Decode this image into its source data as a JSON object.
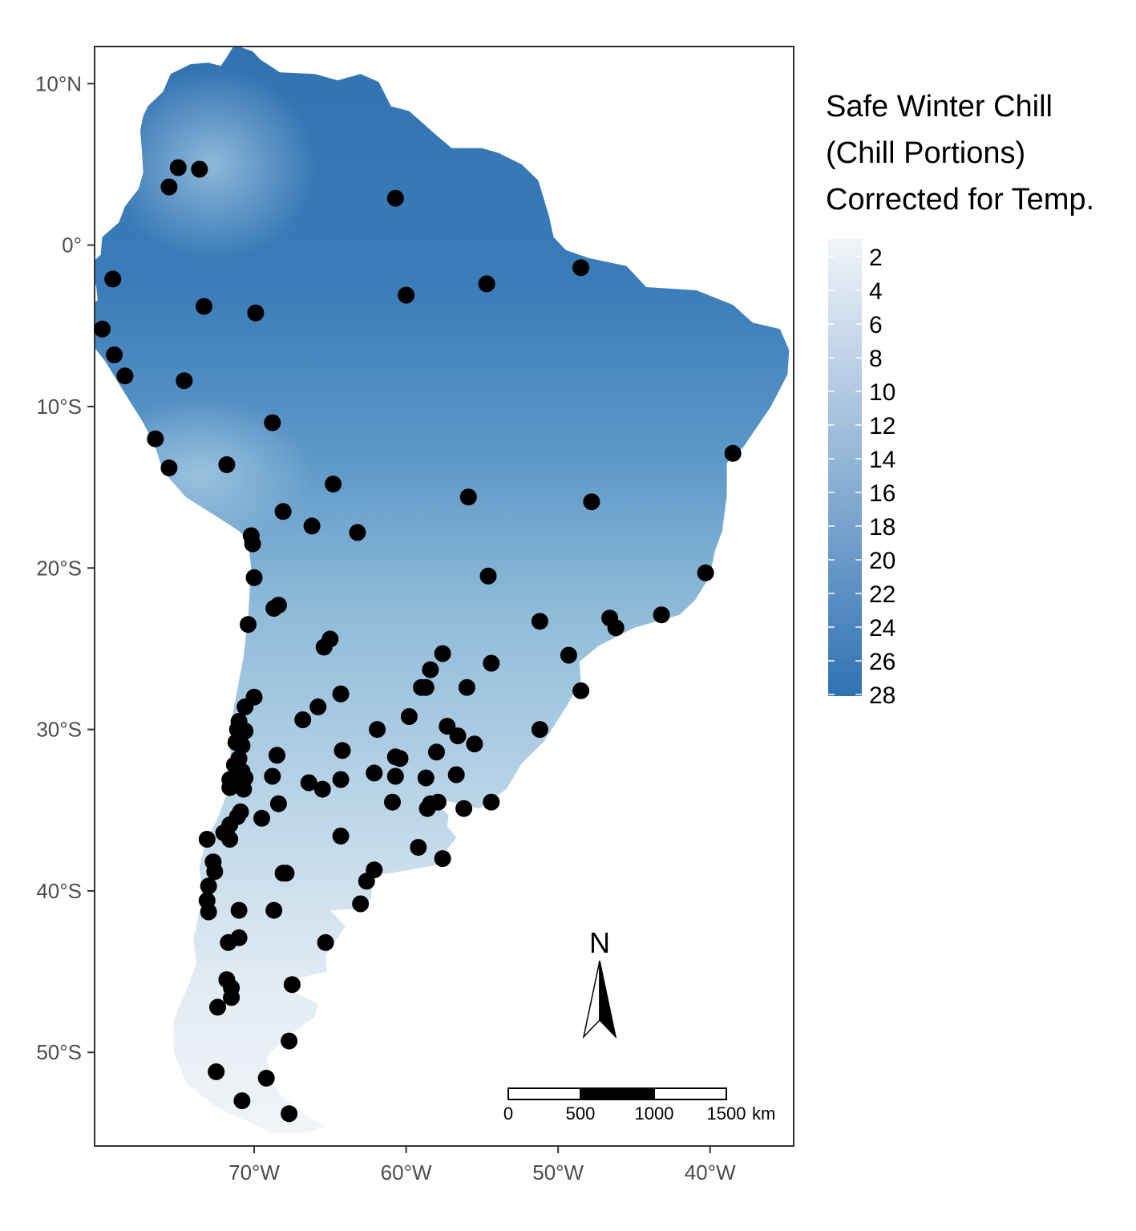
{
  "legend": {
    "title_lines": [
      "Safe Winter Chill",
      "(Chill Portions)",
      "Corrected for Temp."
    ],
    "ticks": [
      2,
      4,
      6,
      8,
      10,
      12,
      14,
      16,
      18,
      20,
      22,
      24,
      26,
      28
    ],
    "color_low": "#f1f4f8",
    "color_high": "#2f72b3"
  },
  "axes": {
    "lon_range": [
      -80.5,
      -34.5
    ],
    "lat_range": [
      -55.8,
      12.3
    ],
    "x_ticks": [
      {
        "value": -70,
        "label": "70°W"
      },
      {
        "value": -60,
        "label": "60°W"
      },
      {
        "value": -50,
        "label": "50°W"
      },
      {
        "value": -40,
        "label": "40°W"
      }
    ],
    "y_ticks": [
      {
        "value": 10,
        "label": "10°N"
      },
      {
        "value": 0,
        "label": "0°"
      },
      {
        "value": -10,
        "label": "10°S"
      },
      {
        "value": -20,
        "label": "20°S"
      },
      {
        "value": -30,
        "label": "30°S"
      },
      {
        "value": -40,
        "label": "40°S"
      },
      {
        "value": -50,
        "label": "50°S"
      }
    ]
  },
  "north_arrow": {
    "label": "N"
  },
  "scale_bar": {
    "labels": [
      "0",
      "500",
      "1000",
      "1500"
    ],
    "unit": "km"
  },
  "chart_data": {
    "type": "scatter",
    "value_range": [
      2,
      28
    ],
    "points": [
      [
        -75.0,
        4.8
      ],
      [
        -73.6,
        4.7
      ],
      [
        -75.6,
        3.6
      ],
      [
        -60.7,
        2.9
      ],
      [
        -48.5,
        -1.4
      ],
      [
        -54.7,
        -2.4
      ],
      [
        -79.3,
        -2.1
      ],
      [
        -60.0,
        -3.1
      ],
      [
        -73.3,
        -3.8
      ],
      [
        -69.9,
        -4.2
      ],
      [
        -80.0,
        -5.2
      ],
      [
        -79.2,
        -6.8
      ],
      [
        -78.5,
        -8.1
      ],
      [
        -74.6,
        -8.4
      ],
      [
        -68.8,
        -11.0
      ],
      [
        -76.5,
        -12.0
      ],
      [
        -75.6,
        -13.8
      ],
      [
        -71.8,
        -13.6
      ],
      [
        -38.5,
        -12.9
      ],
      [
        -64.8,
        -14.8
      ],
      [
        -55.9,
        -15.6
      ],
      [
        -47.8,
        -15.9
      ],
      [
        -68.1,
        -16.5
      ],
      [
        -66.2,
        -17.4
      ],
      [
        -63.2,
        -17.8
      ],
      [
        -70.2,
        -18.0
      ],
      [
        -70.1,
        -18.5
      ],
      [
        -54.6,
        -20.5
      ],
      [
        -40.3,
        -20.3
      ],
      [
        -70.0,
        -20.6
      ],
      [
        -68.7,
        -22.5
      ],
      [
        -68.4,
        -22.3
      ],
      [
        -70.4,
        -23.5
      ],
      [
        -51.2,
        -23.3
      ],
      [
        -46.6,
        -23.1
      ],
      [
        -46.2,
        -23.7
      ],
      [
        -43.2,
        -22.9
      ],
      [
        -65.0,
        -24.4
      ],
      [
        -65.4,
        -24.9
      ],
      [
        -57.6,
        -25.3
      ],
      [
        -54.4,
        -25.9
      ],
      [
        -49.3,
        -25.4
      ],
      [
        -58.4,
        -26.3
      ],
      [
        -59.0,
        -27.4
      ],
      [
        -58.7,
        -27.4
      ],
      [
        -56.0,
        -27.4
      ],
      [
        -48.5,
        -27.6
      ],
      [
        -64.3,
        -27.8
      ],
      [
        -70.0,
        -28.0
      ],
      [
        -70.6,
        -28.6
      ],
      [
        -65.8,
        -28.6
      ],
      [
        -59.8,
        -29.2
      ],
      [
        -66.8,
        -29.4
      ],
      [
        -71.0,
        -29.5
      ],
      [
        -61.9,
        -30.0
      ],
      [
        -57.3,
        -29.8
      ],
      [
        -51.2,
        -30.0
      ],
      [
        -70.6,
        -30.1
      ],
      [
        -71.1,
        -30.0
      ],
      [
        -56.6,
        -30.4
      ],
      [
        -55.5,
        -30.9
      ],
      [
        -71.2,
        -30.8
      ],
      [
        -70.8,
        -31.0
      ],
      [
        -64.2,
        -31.3
      ],
      [
        -58.0,
        -31.4
      ],
      [
        -68.5,
        -31.6
      ],
      [
        -60.7,
        -31.7
      ],
      [
        -60.4,
        -31.8
      ],
      [
        -71.0,
        -31.8
      ],
      [
        -71.3,
        -32.2
      ],
      [
        -70.8,
        -32.6
      ],
      [
        -62.1,
        -32.7
      ],
      [
        -60.7,
        -32.9
      ],
      [
        -58.7,
        -33.0
      ],
      [
        -56.7,
        -32.8
      ],
      [
        -68.8,
        -32.9
      ],
      [
        -70.6,
        -33.0
      ],
      [
        -71.6,
        -33.1
      ],
      [
        -64.3,
        -33.1
      ],
      [
        -66.4,
        -33.3
      ],
      [
        -70.9,
        -33.4
      ],
      [
        -71.6,
        -33.6
      ],
      [
        -70.7,
        -33.7
      ],
      [
        -65.5,
        -33.7
      ],
      [
        -60.9,
        -34.5
      ],
      [
        -68.4,
        -34.6
      ],
      [
        -58.4,
        -34.6
      ],
      [
        -57.9,
        -34.5
      ],
      [
        -58.6,
        -34.9
      ],
      [
        -56.2,
        -34.9
      ],
      [
        -54.4,
        -34.5
      ],
      [
        -70.9,
        -35.1
      ],
      [
        -71.1,
        -35.4
      ],
      [
        -69.5,
        -35.5
      ],
      [
        -71.6,
        -35.9
      ],
      [
        -72.0,
        -36.4
      ],
      [
        -71.6,
        -36.8
      ],
      [
        -73.1,
        -36.8
      ],
      [
        -64.3,
        -36.6
      ],
      [
        -59.2,
        -37.3
      ],
      [
        -57.6,
        -38.0
      ],
      [
        -72.7,
        -38.2
      ],
      [
        -72.6,
        -38.8
      ],
      [
        -68.1,
        -38.9
      ],
      [
        -67.9,
        -38.9
      ],
      [
        -62.1,
        -38.7
      ],
      [
        -62.6,
        -39.4
      ],
      [
        -73.0,
        -39.7
      ],
      [
        -63.0,
        -40.8
      ],
      [
        -73.1,
        -40.6
      ],
      [
        -73.0,
        -41.3
      ],
      [
        -71.0,
        -41.2
      ],
      [
        -68.7,
        -41.2
      ],
      [
        -71.0,
        -42.9
      ],
      [
        -71.7,
        -43.2
      ],
      [
        -65.3,
        -43.2
      ],
      [
        -71.8,
        -45.5
      ],
      [
        -71.5,
        -46.0
      ],
      [
        -67.5,
        -45.8
      ],
      [
        -71.5,
        -46.6
      ],
      [
        -72.4,
        -47.2
      ],
      [
        -67.7,
        -49.3
      ],
      [
        -72.5,
        -51.2
      ],
      [
        -69.2,
        -51.6
      ],
      [
        -70.8,
        -53.0
      ],
      [
        -67.7,
        -53.8
      ]
    ]
  }
}
